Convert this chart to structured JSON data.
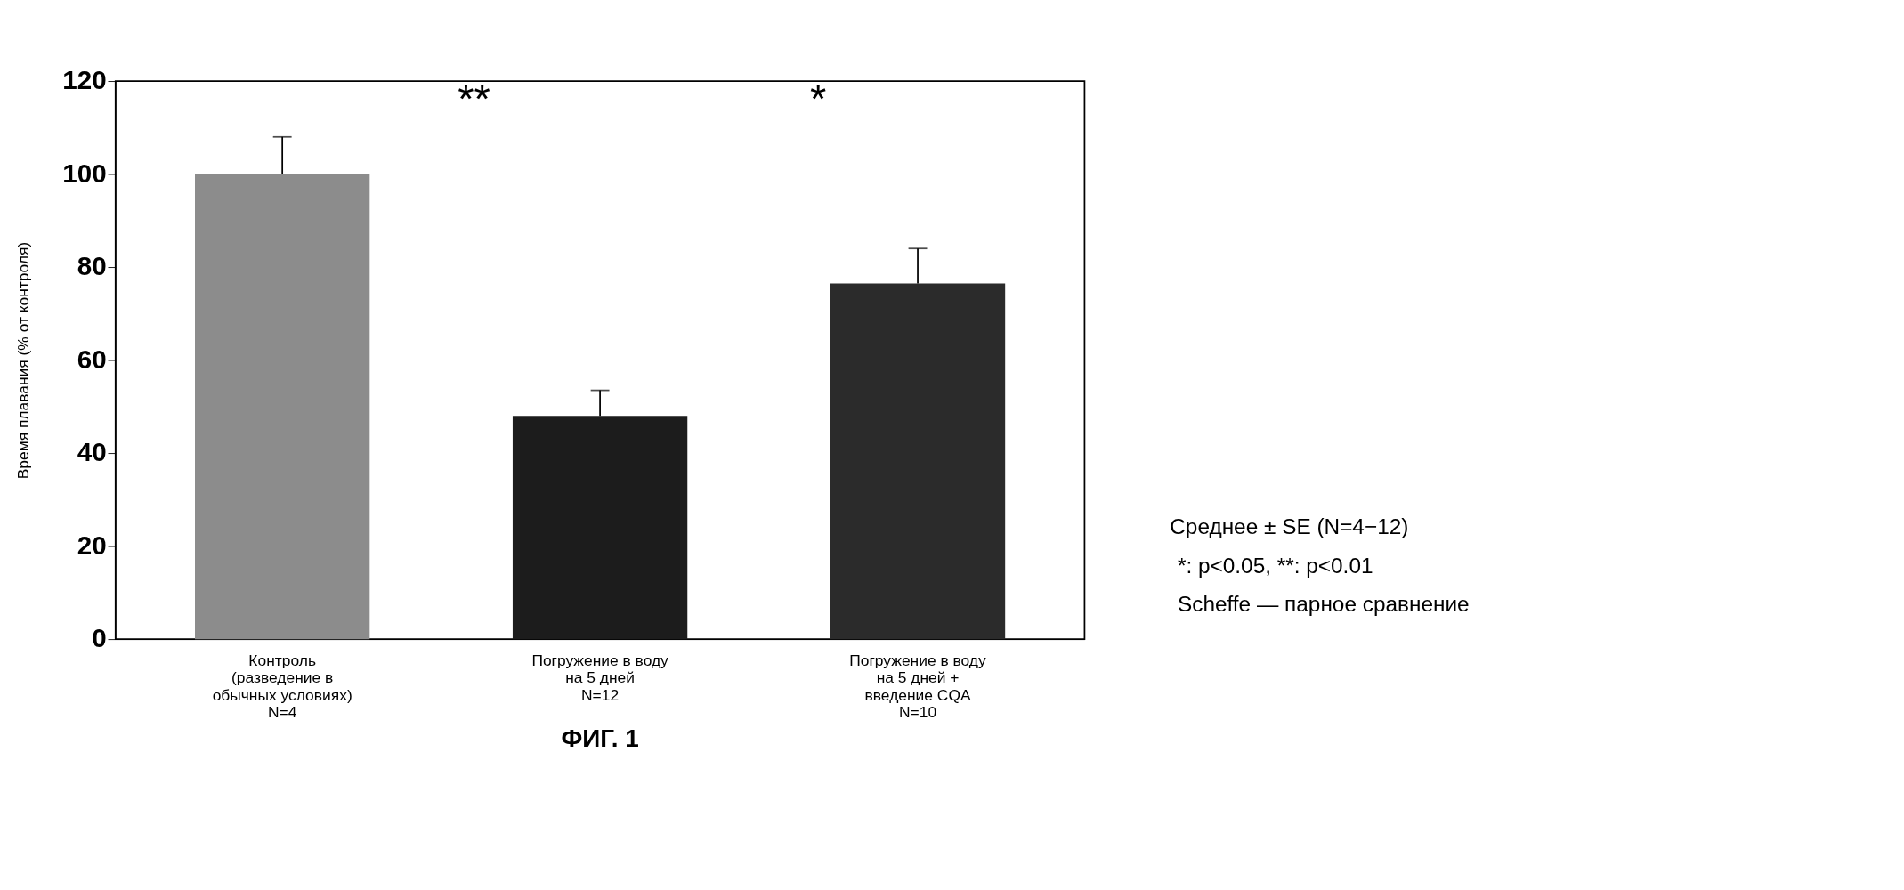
{
  "chart_data": {
    "type": "bar",
    "title": "ФИГ. 1",
    "ylabel": "Время плавания (% от контроля)",
    "categories": [
      "Контроль\n(разведение в\nобычных условиях)\nN=4",
      "Погружение в воду\nна 5 дней\nN=12",
      "Погружение в воду\nна 5 дней +\nвведение CQA\nN=10"
    ],
    "values": [
      100,
      48,
      76.5
    ],
    "colors": [
      "#8c8c8c",
      "#1c1c1c",
      "#2b2b2b"
    ],
    "errors": [
      [
        100,
        108
      ],
      [
        48,
        53.5
      ],
      [
        76.5,
        84
      ]
    ],
    "ylim": [
      0,
      120
    ],
    "yticks": [
      0,
      20,
      40,
      60,
      80,
      100,
      120
    ],
    "grid": false,
    "annotations": [
      "**",
      "*",
      "Среднее ± SE (N=4−12)",
      "*: p<0.05, **: p<0.01",
      "Scheffe — парное сравнение"
    ]
  }
}
